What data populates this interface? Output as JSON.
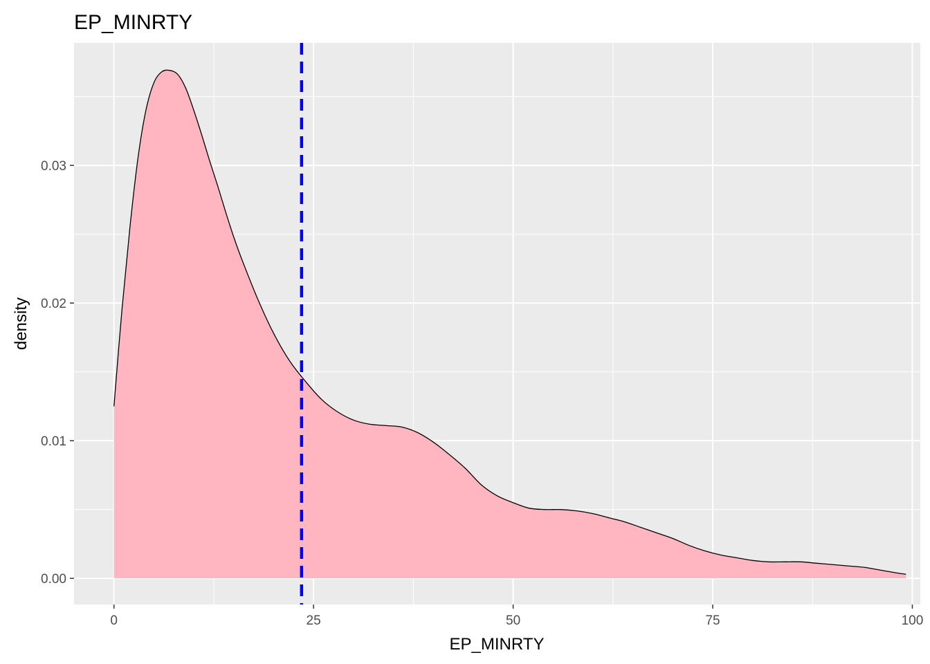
{
  "chart_data": {
    "type": "area",
    "title": "EP_MINRTY",
    "xlabel": "EP_MINRTY",
    "ylabel": "density",
    "xlim": [
      -5,
      101
    ],
    "ylim": [
      -0.0019,
      0.0389
    ],
    "x_ticks": [
      0,
      25,
      50,
      75,
      100
    ],
    "x_tick_labels": [
      "0",
      "25",
      "50",
      "75",
      "100"
    ],
    "y_ticks": [
      0.0,
      0.01,
      0.02,
      0.03
    ],
    "y_tick_labels": [
      "0.00",
      "0.01",
      "0.02",
      "0.03"
    ],
    "grid": true,
    "legend": "none",
    "fill_color": "#ffb6c1",
    "line_color": "#000000",
    "panel_color": "#ebebeb",
    "vline": {
      "x": 23.5,
      "color": "#0000ff",
      "style": "dashed"
    },
    "x": [
      0,
      1,
      2,
      3,
      4,
      5,
      6,
      7,
      8,
      9,
      10,
      11,
      12,
      13,
      14,
      15,
      16,
      18,
      20,
      22,
      24,
      26,
      28,
      30,
      32,
      34,
      36,
      38,
      40,
      42,
      44,
      46,
      48,
      50,
      52,
      54,
      56,
      58,
      60,
      62,
      64,
      66,
      68,
      70,
      72,
      74,
      76,
      78,
      80,
      82,
      84,
      86,
      88,
      90,
      92,
      94,
      96,
      98,
      99.2
    ],
    "values": [
      0.0125,
      0.0195,
      0.0255,
      0.0305,
      0.034,
      0.036,
      0.0368,
      0.0369,
      0.0366,
      0.0356,
      0.034,
      0.0322,
      0.0303,
      0.0285,
      0.0266,
      0.0248,
      0.0232,
      0.0203,
      0.0178,
      0.0158,
      0.0143,
      0.013,
      0.0121,
      0.0115,
      0.0112,
      0.0111,
      0.011,
      0.0106,
      0.0099,
      0.009,
      0.008,
      0.0068,
      0.006,
      0.0055,
      0.0051,
      0.005,
      0.005,
      0.0049,
      0.0047,
      0.0044,
      0.0041,
      0.0037,
      0.0033,
      0.0029,
      0.0024,
      0.002,
      0.0017,
      0.0015,
      0.0013,
      0.0012,
      0.0012,
      0.0012,
      0.0011,
      0.001,
      0.0009,
      0.0008,
      0.0006,
      0.0004,
      0.0003
    ]
  }
}
